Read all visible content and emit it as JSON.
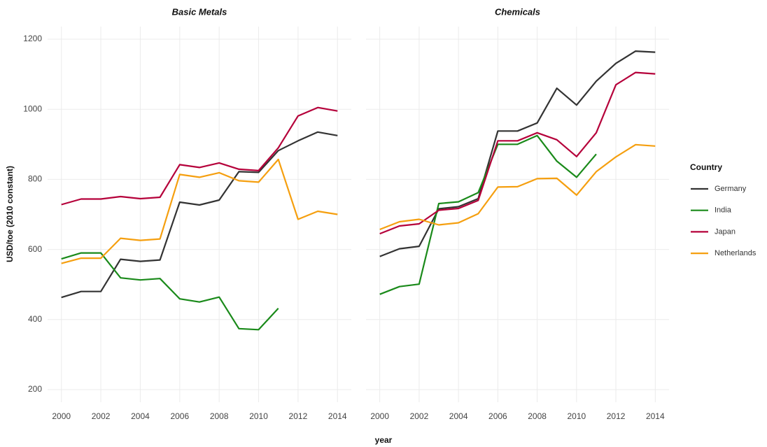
{
  "chart_data": [
    {
      "type": "line",
      "title": "Basic Metals",
      "x": [
        2000,
        2001,
        2002,
        2003,
        2004,
        2005,
        2006,
        2007,
        2008,
        2009,
        2010,
        2011,
        2012,
        2013,
        2014
      ],
      "series": [
        {
          "name": "Germany",
          "color": "#333333",
          "values": [
            463,
            480,
            480,
            572,
            566,
            570,
            735,
            727,
            741,
            822,
            820,
            882,
            910,
            935,
            925
          ]
        },
        {
          "name": "India",
          "color": "#1a8a1a",
          "values": [
            573,
            590,
            590,
            519,
            513,
            517,
            459,
            450,
            464,
            374,
            371,
            432,
            null,
            null,
            null
          ]
        },
        {
          "name": "Japan",
          "color": "#b5003a",
          "values": [
            728,
            744,
            744,
            751,
            745,
            749,
            842,
            834,
            847,
            829,
            825,
            890,
            981,
            1005,
            995
          ]
        },
        {
          "name": "Netherlands",
          "color": "#f59f0f",
          "values": [
            560,
            575,
            575,
            632,
            626,
            630,
            814,
            806,
            819,
            796,
            792,
            857,
            686,
            709,
            700
          ]
        }
      ],
      "xlim": [
        1999.3,
        2014.7
      ],
      "xticks": [
        2000,
        2002,
        2004,
        2006,
        2008,
        2010,
        2012,
        2014
      ],
      "ylim": [
        164,
        1236
      ],
      "yticks": [
        200,
        400,
        600,
        800,
        1000,
        1200
      ],
      "grid": true
    },
    {
      "type": "line",
      "title": "Chemicals",
      "x": [
        2000,
        2001,
        2002,
        2003,
        2004,
        2005,
        2006,
        2007,
        2008,
        2009,
        2010,
        2011,
        2012,
        2013,
        2014
      ],
      "series": [
        {
          "name": "Germany",
          "color": "#333333",
          "values": [
            580,
            602,
            609,
            716,
            722,
            745,
            938,
            938,
            961,
            1060,
            1012,
            1080,
            1131,
            1166,
            1163
          ]
        },
        {
          "name": "India",
          "color": "#1a8a1a",
          "values": [
            472,
            494,
            501,
            731,
            736,
            762,
            900,
            900,
            925,
            852,
            806,
            872,
            null,
            null,
            null
          ]
        },
        {
          "name": "Japan",
          "color": "#b5003a",
          "values": [
            645,
            667,
            673,
            712,
            717,
            740,
            910,
            910,
            933,
            913,
            865,
            933,
            1070,
            1105,
            1101
          ]
        },
        {
          "name": "Netherlands",
          "color": "#f59f0f",
          "values": [
            657,
            679,
            686,
            670,
            676,
            702,
            778,
            779,
            802,
            803,
            755,
            822,
            864,
            899,
            895
          ]
        }
      ],
      "xlim": [
        1999.3,
        2014.7
      ],
      "xticks": [
        2000,
        2002,
        2004,
        2006,
        2008,
        2010,
        2012,
        2014
      ],
      "ylim": [
        164,
        1236
      ],
      "yticks": [
        200,
        400,
        600,
        800,
        1000,
        1200
      ],
      "grid": true
    }
  ],
  "xlabel": "year",
  "ylabel": "USD/toe (2010 constant)",
  "legend_title": "Country"
}
